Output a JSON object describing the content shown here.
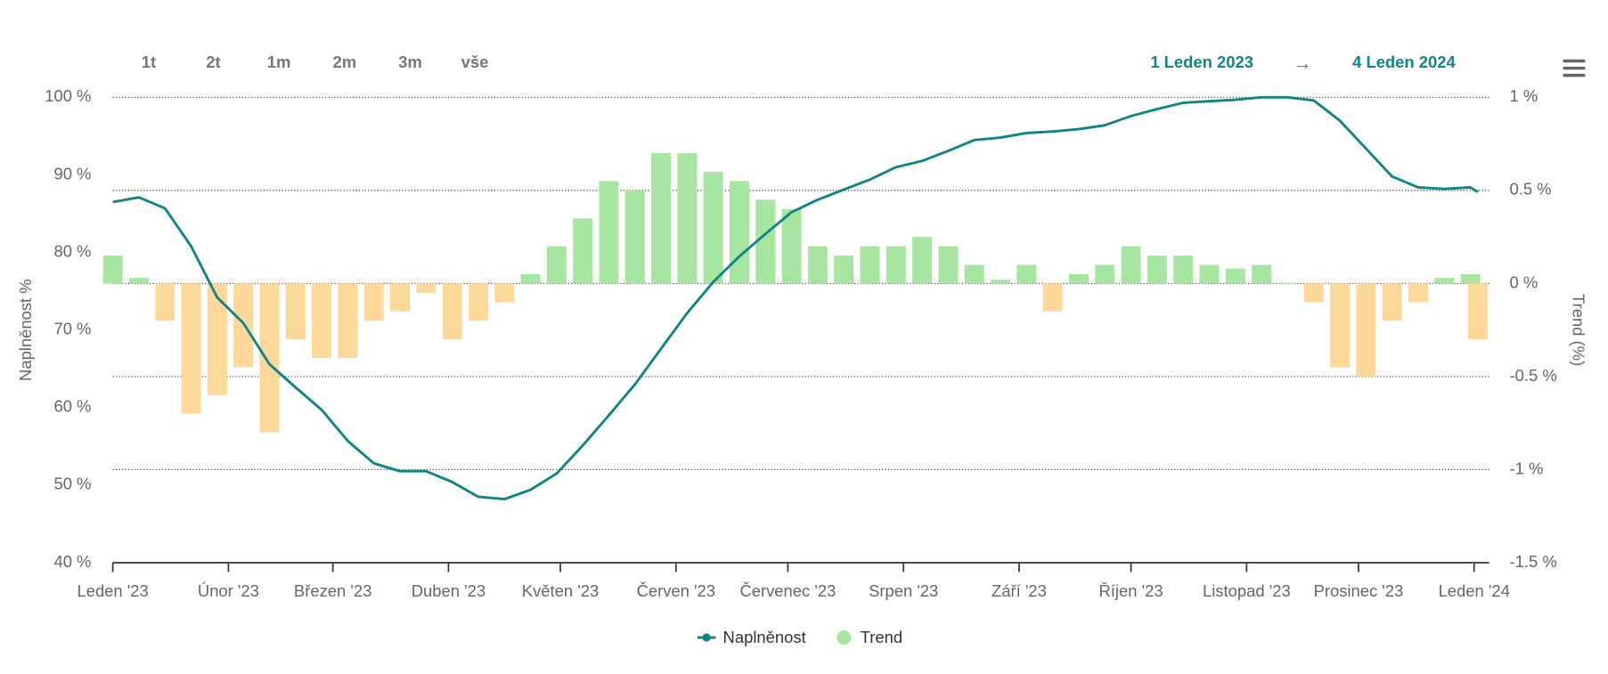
{
  "toolbar": {
    "buttons": [
      "1t",
      "2t",
      "1m",
      "2m",
      "3m",
      "vše"
    ],
    "range_from": "1 Leden 2023",
    "range_arrow": "→",
    "range_to": "4 Leden 2024"
  },
  "chart_data": {
    "type": "combo",
    "y_label": "Naplněnost %",
    "y2_label": "Trend (%)",
    "xlim": [
      0,
      369
    ],
    "xticks": [
      {
        "value": 0,
        "label": "Leden '23"
      },
      {
        "value": 31,
        "label": "Únor '23"
      },
      {
        "value": 59,
        "label": "Březen '23"
      },
      {
        "value": 90,
        "label": "Duben '23"
      },
      {
        "value": 120,
        "label": "Květen '23"
      },
      {
        "value": 151,
        "label": "Červen '23"
      },
      {
        "value": 181,
        "label": "Červenec '23"
      },
      {
        "value": 212,
        "label": "Srpen '23"
      },
      {
        "value": 243,
        "label": "Září '23"
      },
      {
        "value": 273,
        "label": "Říjen '23"
      },
      {
        "value": 304,
        "label": "Listopad '23"
      },
      {
        "value": 334,
        "label": "Prosinec '23"
      },
      {
        "value": 365,
        "label": "Leden '24"
      }
    ],
    "ylim": [
      40,
      100
    ],
    "yticks": [
      {
        "value": 40,
        "label": "40 %"
      },
      {
        "value": 50,
        "label": "50 %"
      },
      {
        "value": 60,
        "label": "60 %"
      },
      {
        "value": 70,
        "label": "70 %"
      },
      {
        "value": 80,
        "label": "80 %"
      },
      {
        "value": 90,
        "label": "90 %"
      },
      {
        "value": 100,
        "label": "100 %"
      }
    ],
    "y2lim": [
      -1.5,
      1
    ],
    "y2ticks": [
      {
        "value": -1.5,
        "label": "-1.5 %"
      },
      {
        "value": -1,
        "label": "-1 %"
      },
      {
        "value": -0.5,
        "label": "-0.5 %"
      },
      {
        "value": 0,
        "label": "0 %"
      },
      {
        "value": 0.5,
        "label": "0.5 %"
      },
      {
        "value": 1,
        "label": "1 %"
      }
    ],
    "grid": true,
    "x": [
      0,
      7,
      14,
      21,
      28,
      35,
      42,
      49,
      56,
      63,
      70,
      77,
      84,
      91,
      98,
      105,
      112,
      119,
      126,
      133,
      140,
      147,
      154,
      161,
      168,
      175,
      182,
      189,
      196,
      203,
      210,
      217,
      224,
      231,
      238,
      245,
      252,
      259,
      266,
      273,
      280,
      287,
      294,
      301,
      308,
      315,
      322,
      329,
      336,
      343,
      350,
      357,
      364,
      366
    ],
    "series": [
      {
        "name": "Naplněnost",
        "type": "line",
        "color": "#0e8585",
        "values": [
          86.5,
          87.1,
          85.7,
          80.8,
          74.2,
          70.9,
          65.6,
          62.6,
          59.7,
          55.7,
          52.8,
          51.8,
          51.8,
          50.4,
          48.5,
          48.2,
          49.4,
          51.5,
          55.1,
          59.0,
          63.0,
          67.6,
          72.2,
          76.2,
          79.5,
          82.4,
          85.2,
          86.8,
          88.1,
          89.4,
          91.0,
          91.8,
          93.1,
          94.5,
          94.8,
          95.4,
          95.6,
          95.9,
          96.4,
          97.6,
          98.5,
          99.3,
          99.5,
          99.7,
          100,
          100,
          99.6,
          97.0,
          93.4,
          89.8,
          88.4,
          88.2,
          88.4,
          87.8
        ]
      },
      {
        "name": "Trend",
        "type": "bar",
        "axis": "y2",
        "color": "#a6e6a0",
        "negative_color": "#fdd898",
        "values": [
          0.15,
          0.03,
          -0.2,
          -0.7,
          -0.6,
          -0.45,
          -0.8,
          -0.3,
          -0.4,
          -0.4,
          -0.2,
          -0.15,
          -0.05,
          -0.3,
          -0.2,
          -0.1,
          0.05,
          0.2,
          0.35,
          0.55,
          0.5,
          0.7,
          0.7,
          0.6,
          0.55,
          0.45,
          0.4,
          0.2,
          0.15,
          0.2,
          0.2,
          0.25,
          0.2,
          0.1,
          0.02,
          0.1,
          -0.15,
          0.05,
          0.1,
          0.2,
          0.15,
          0.15,
          0.1,
          0.08,
          0.1,
          0,
          -0.1,
          -0.45,
          -0.5,
          -0.2,
          -0.1,
          0.03,
          0.05,
          -0.3
        ]
      }
    ]
  }
}
